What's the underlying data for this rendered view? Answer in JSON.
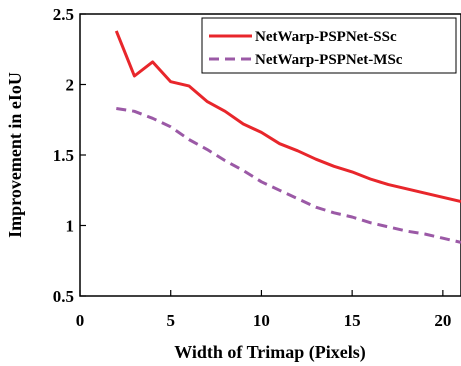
{
  "chart_data": {
    "type": "line",
    "xlabel": "Width of Trimap (Pixels)",
    "ylabel": "Improvement in eIoU",
    "xlim": [
      0,
      21
    ],
    "ylim": [
      0.5,
      2.5
    ],
    "xticks": [
      "0",
      "5",
      "10",
      "15",
      "20"
    ],
    "yticks": [
      "0.5",
      "1",
      "1.5",
      "2",
      "2.5"
    ],
    "legend_position": "top-right",
    "grid": false,
    "series": [
      {
        "name": "NetWarp-PSPNet-SSc",
        "color": "#e8262b",
        "style": "solid",
        "x": [
          2,
          3,
          4,
          5,
          6,
          7,
          8,
          9,
          10,
          11,
          12,
          13,
          14,
          15,
          16,
          17,
          18,
          19,
          20,
          21
        ],
        "values": [
          2.38,
          2.06,
          2.16,
          2.02,
          1.99,
          1.88,
          1.81,
          1.72,
          1.66,
          1.58,
          1.53,
          1.47,
          1.42,
          1.38,
          1.33,
          1.29,
          1.26,
          1.23,
          1.2,
          1.17
        ]
      },
      {
        "name": "NetWarp-PSPNet-MSc",
        "color": "#9b59a6",
        "style": "dashed",
        "x": [
          2,
          3,
          4,
          5,
          6,
          7,
          8,
          9,
          10,
          11,
          12,
          13,
          14,
          15,
          16,
          17,
          18,
          19,
          20,
          21
        ],
        "values": [
          1.83,
          1.81,
          1.76,
          1.7,
          1.61,
          1.54,
          1.46,
          1.39,
          1.31,
          1.25,
          1.19,
          1.13,
          1.09,
          1.06,
          1.02,
          0.99,
          0.96,
          0.94,
          0.91,
          0.88
        ]
      }
    ]
  }
}
